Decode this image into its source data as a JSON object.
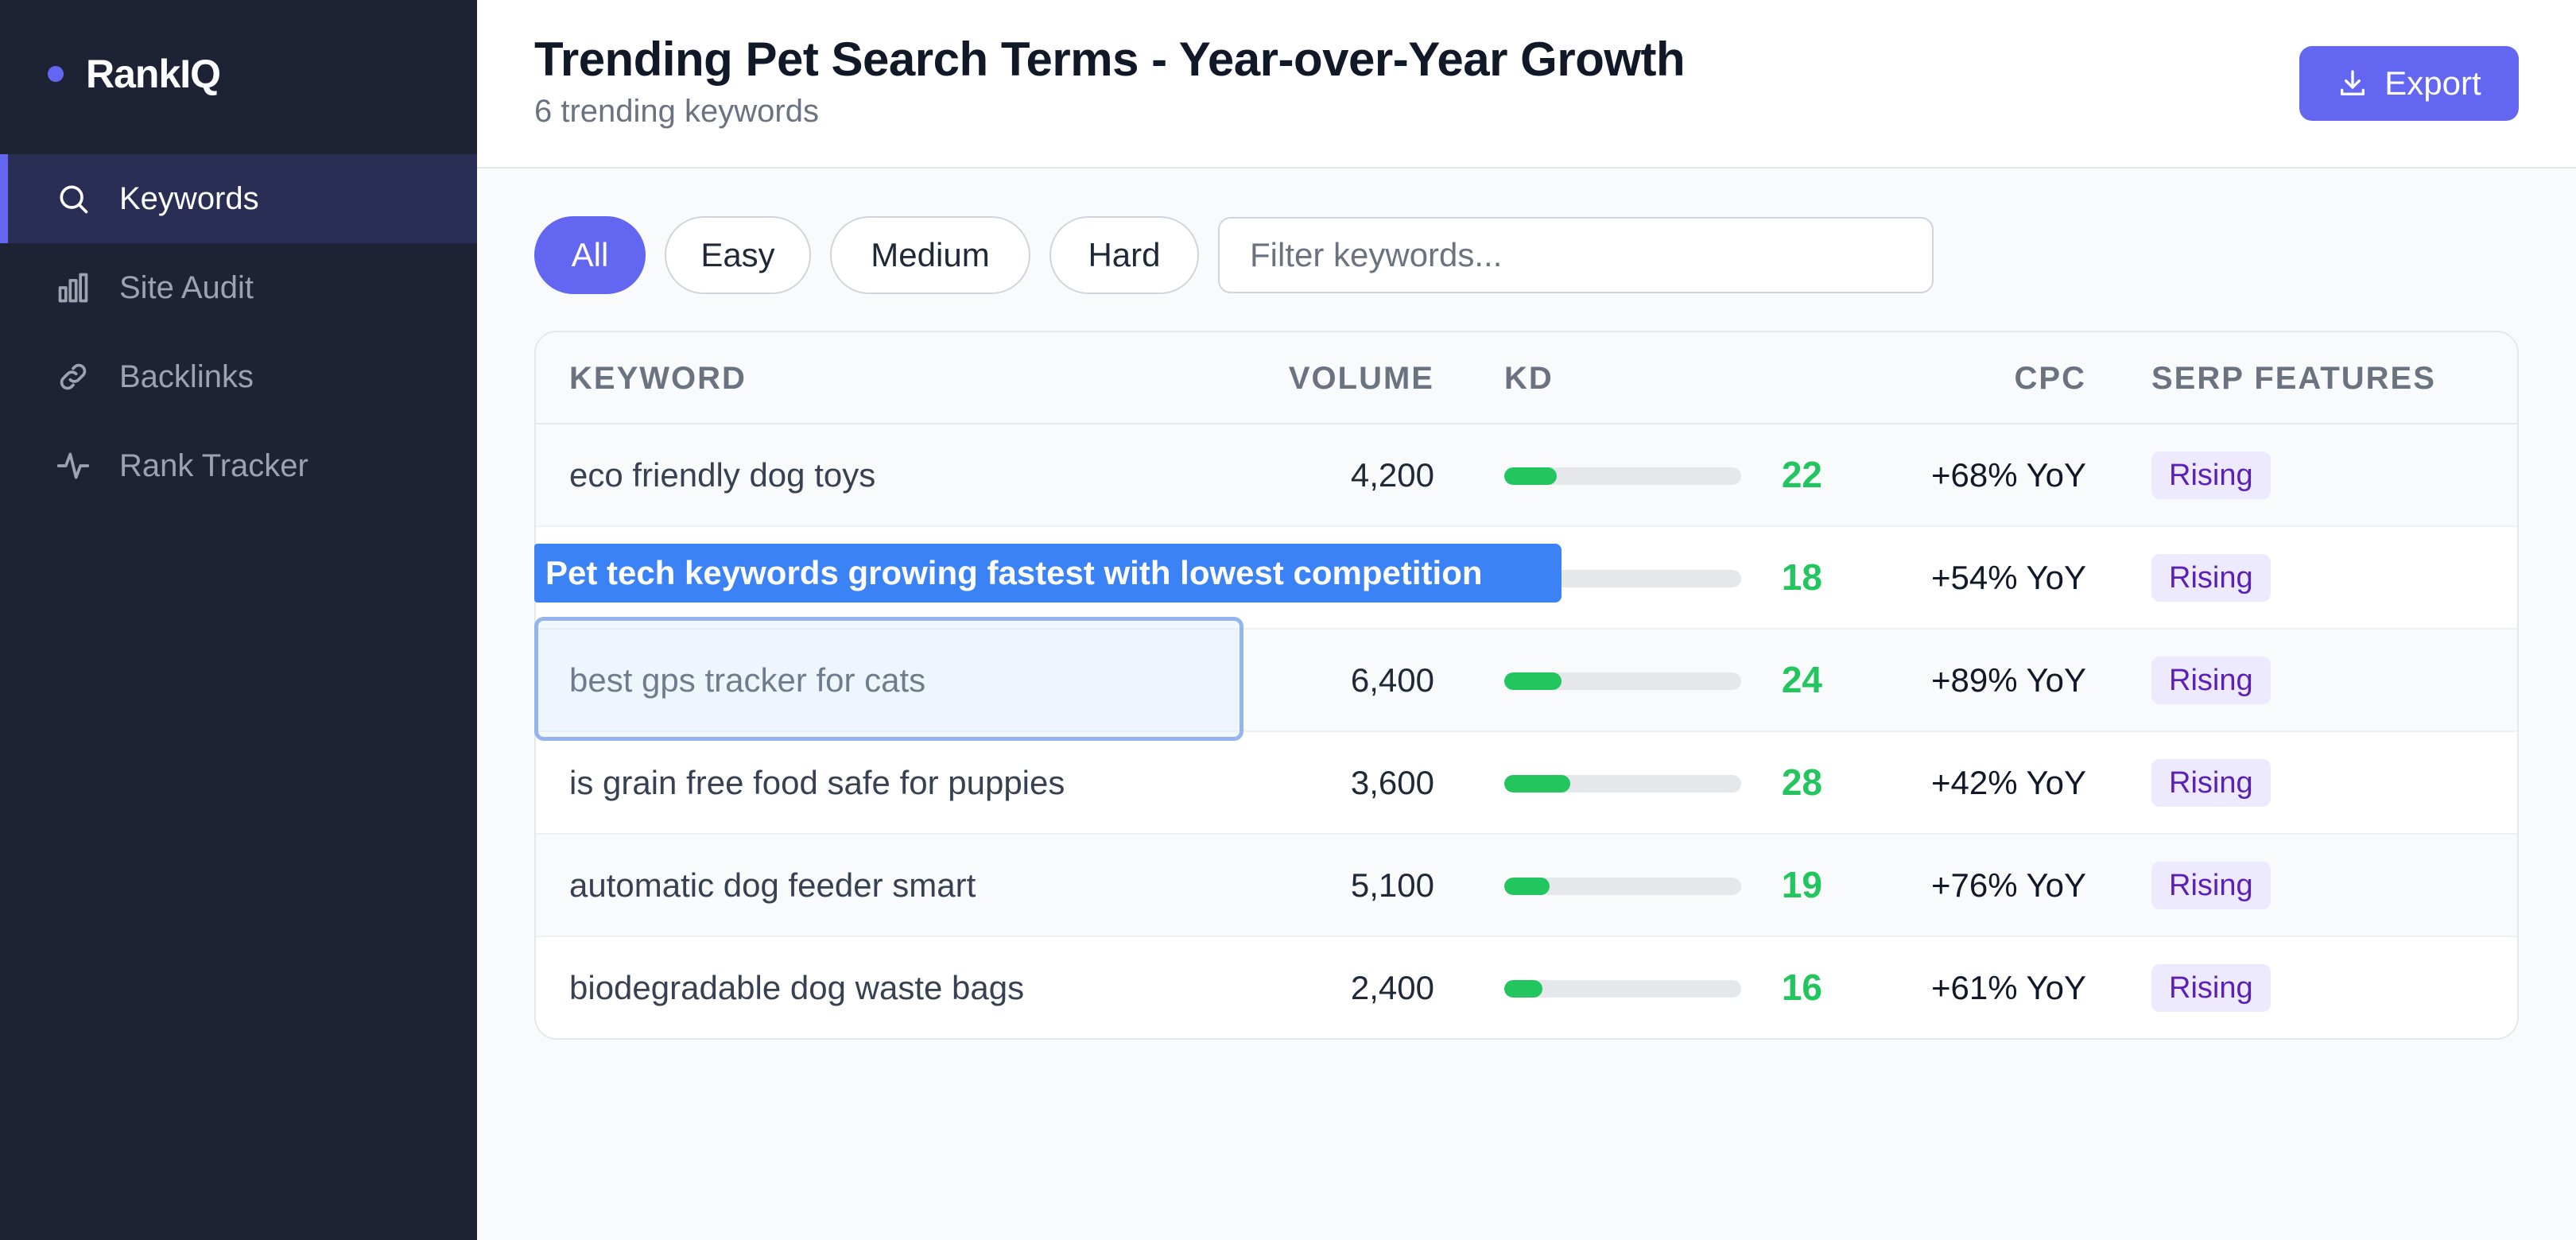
{
  "brand": {
    "name": "RankIQ",
    "accent": "#6366f1"
  },
  "sidebar": {
    "items": [
      {
        "label": "Keywords",
        "icon": "search-icon",
        "active": true
      },
      {
        "label": "Site Audit",
        "icon": "bar-chart-icon",
        "active": false
      },
      {
        "label": "Backlinks",
        "icon": "link-icon",
        "active": false
      },
      {
        "label": "Rank Tracker",
        "icon": "activity-icon",
        "active": false
      }
    ]
  },
  "header": {
    "title": "Trending Pet Search Terms - Year-over-Year Growth",
    "subtitle": "6 trending keywords",
    "export_label": "Export"
  },
  "filters": {
    "pills": [
      "All",
      "Easy",
      "Medium",
      "Hard"
    ],
    "active": "All",
    "search_placeholder": "Filter keywords..."
  },
  "table": {
    "columns": [
      "KEYWORD",
      "VOLUME",
      "KD",
      "CPC",
      "SERP FEATURES"
    ],
    "rows": [
      {
        "keyword": "eco friendly dog toys",
        "volume": "4,200",
        "kd": "22",
        "cpc": "+68% YoY",
        "serp": "Rising"
      },
      {
        "keyword": "",
        "volume": "",
        "kd": "18",
        "cpc": "+54% YoY",
        "serp": "Rising"
      },
      {
        "keyword": "best gps tracker for cats",
        "volume": "6,400",
        "kd": "24",
        "cpc": "+89% YoY",
        "serp": "Rising"
      },
      {
        "keyword": "is grain free food safe for puppies",
        "volume": "3,600",
        "kd": "28",
        "cpc": "+42% YoY",
        "serp": "Rising"
      },
      {
        "keyword": "automatic dog feeder smart",
        "volume": "5,100",
        "kd": "19",
        "cpc": "+76% YoY",
        "serp": "Rising"
      },
      {
        "keyword": "biodegradable dog waste bags",
        "volume": "2,400",
        "kd": "16",
        "cpc": "+61% YoY",
        "serp": "Rising"
      }
    ]
  },
  "annotation": {
    "text": "Pet tech keywords growing fastest with lowest competition",
    "color": "#3b82f6"
  },
  "colors": {
    "kd_easy": "#22c55e",
    "badge_bg": "#ede9fe",
    "badge_text": "#5b21b6"
  }
}
